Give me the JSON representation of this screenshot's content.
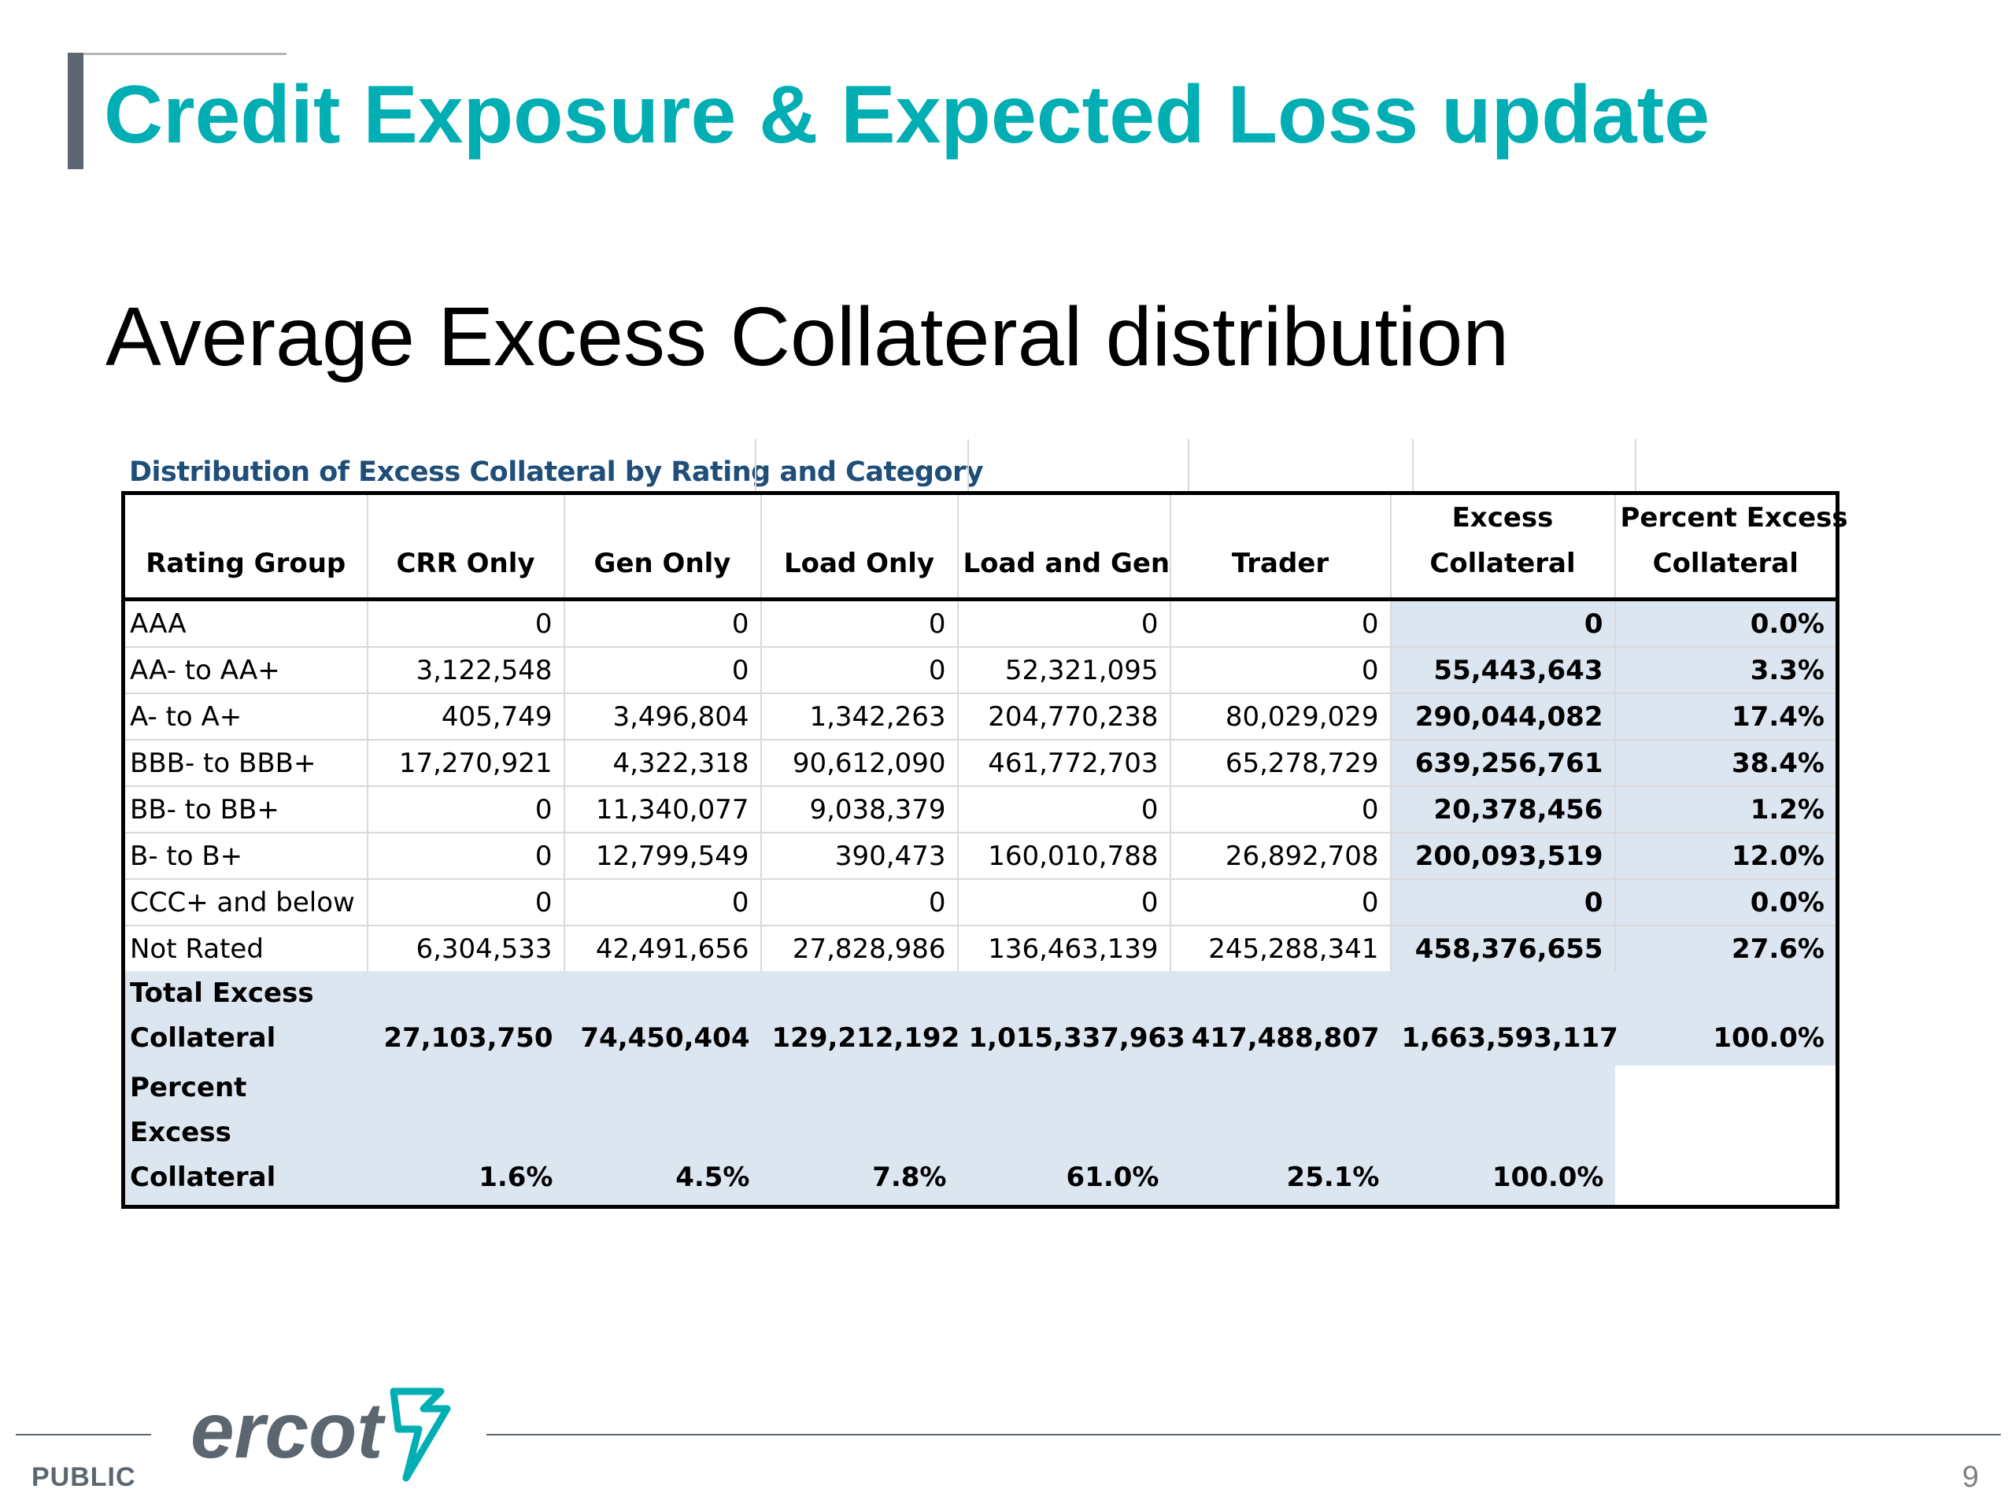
{
  "slide": {
    "title": "Credit Exposure & Expected Loss update",
    "subtitle": "Average Excess Collateral distribution",
    "footer_label": "PUBLIC",
    "page_number": "9",
    "logo_text": "ercot"
  },
  "colors": {
    "title": "#00aeb3",
    "accent_bar": "#5b6670",
    "caption": "#1f4e79",
    "shaded_cell": "#dce6f1"
  },
  "table": {
    "caption": "Distribution of Excess Collateral by Rating and Category",
    "headers": [
      [
        "",
        "Rating Group"
      ],
      [
        "",
        "CRR Only"
      ],
      [
        "",
        "Gen Only"
      ],
      [
        "",
        "Load Only"
      ],
      [
        "",
        "Load and Gen"
      ],
      [
        "",
        "Trader"
      ],
      [
        "Excess",
        "Collateral"
      ],
      [
        "Percent Excess",
        "Collateral"
      ]
    ],
    "rows": [
      [
        "AAA",
        "0",
        "0",
        "0",
        "0",
        "0",
        "0",
        "0.0%"
      ],
      [
        "AA- to AA+",
        "3,122,548",
        "0",
        "0",
        "52,321,095",
        "0",
        "55,443,643",
        "3.3%"
      ],
      [
        "A- to A+",
        "405,749",
        "3,496,804",
        "1,342,263",
        "204,770,238",
        "80,029,029",
        "290,044,082",
        "17.4%"
      ],
      [
        "BBB- to BBB+",
        "17,270,921",
        "4,322,318",
        "90,612,090",
        "461,772,703",
        "65,278,729",
        "639,256,761",
        "38.4%"
      ],
      [
        "BB- to BB+",
        "0",
        "11,340,077",
        "9,038,379",
        "0",
        "0",
        "20,378,456",
        "1.2%"
      ],
      [
        "B- to B+",
        "0",
        "12,799,549",
        "390,473",
        "160,010,788",
        "26,892,708",
        "200,093,519",
        "12.0%"
      ],
      [
        "CCC+ and below",
        "0",
        "0",
        "0",
        "0",
        "0",
        "0",
        "0.0%"
      ],
      [
        "Not Rated",
        "6,304,533",
        "42,491,656",
        "27,828,986",
        "136,463,139",
        "245,288,341",
        "458,376,655",
        "27.6%"
      ]
    ],
    "total_row": [
      "Total Excess Collateral",
      "27,103,750",
      "74,450,404",
      "129,212,192",
      "1,015,337,963",
      "417,488,807",
      "1,663,593,117",
      "100.0%"
    ],
    "percent_row": [
      "Percent Excess Collateral",
      "1.6%",
      "4.5%",
      "7.8%",
      "61.0%",
      "25.1%",
      "100.0%",
      ""
    ]
  }
}
